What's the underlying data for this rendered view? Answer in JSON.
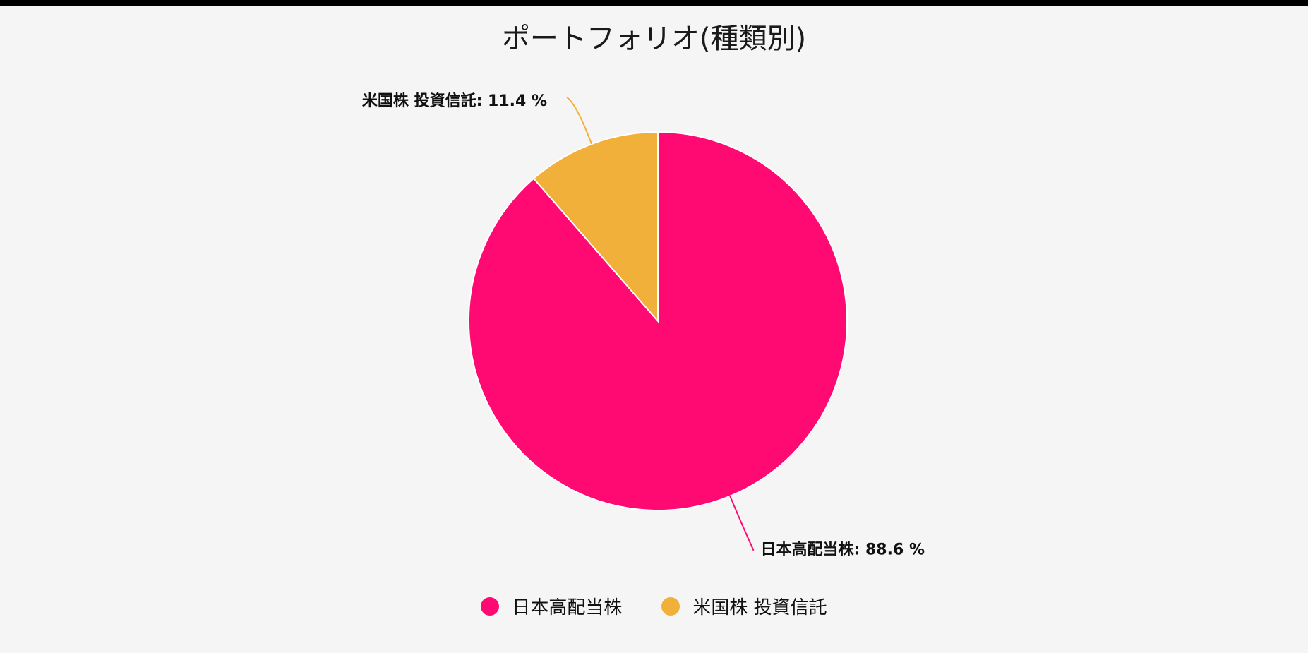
{
  "chart_data": {
    "type": "pie",
    "title": "ポートフォリオ(種類別)",
    "categories": [
      "米国株 投資信託",
      "日本高配当株"
    ],
    "values": [
      11.4,
      88.6
    ],
    "unit": "%",
    "colors": [
      "#f0b03a",
      "#ff0a72"
    ],
    "slice_labels": [
      "米国株 投資信託: 11.4 %",
      "日本高配当株: 88.6 %"
    ],
    "legend": {
      "position": "bottom",
      "entries": [
        "日本高配当株",
        "米国株 投資信託"
      ],
      "colors": [
        "#ff0a72",
        "#f0b03a"
      ]
    }
  }
}
